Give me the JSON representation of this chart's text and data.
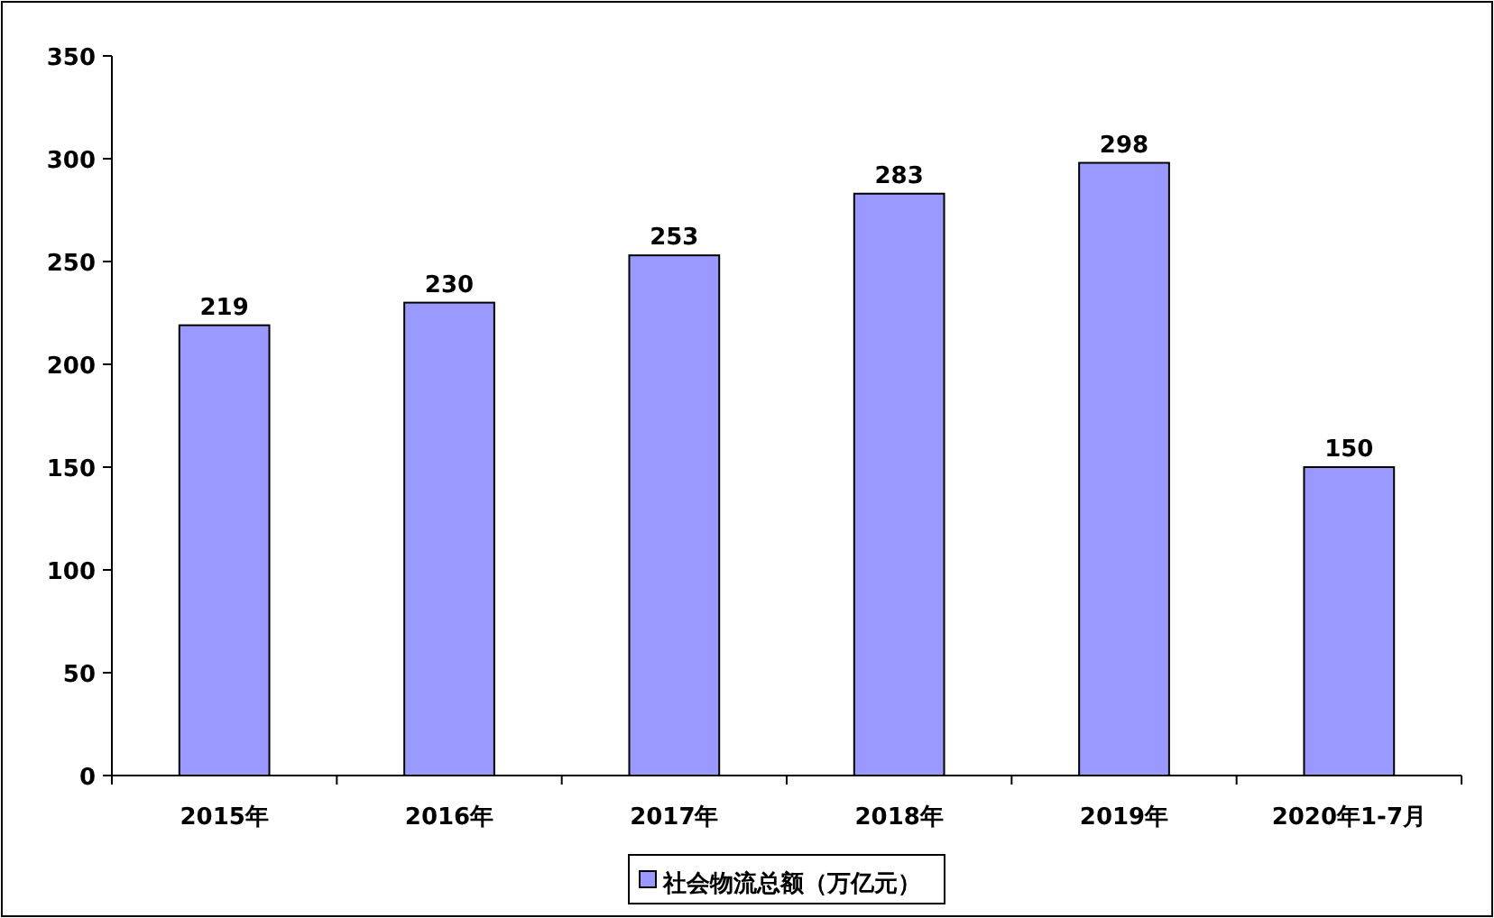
{
  "chart_data": {
    "type": "bar",
    "categories": [
      "2015年",
      "2016年",
      "2017年",
      "2018年",
      "2019年",
      "2020年1-7月"
    ],
    "series": [
      {
        "name": "社会物流总额（万亿元）",
        "color": "#9999ff",
        "values": [
          219,
          230,
          253,
          283,
          298,
          150
        ]
      }
    ],
    "ylim": [
      0,
      350
    ],
    "yticks": [
      0,
      50,
      100,
      150,
      200,
      250,
      300,
      350
    ],
    "data_labels": true,
    "grid": false,
    "legend": "bottom"
  }
}
